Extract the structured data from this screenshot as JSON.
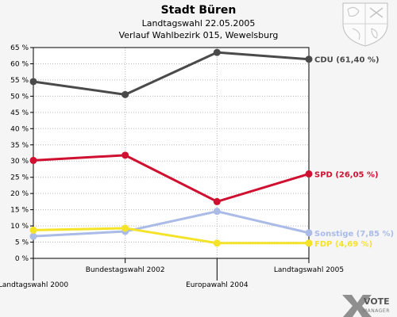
{
  "header": {
    "title": "Stadt Büren",
    "subtitle1": "Landtagswahl 22.05.2005",
    "subtitle2": "Verlauf Wahlbezirk 015, Wewelsburg"
  },
  "logo": {
    "name": "VOTE",
    "tagline": "MANAGER",
    "icon": "x-logo-icon",
    "emblem": "coat-of-arms-icon"
  },
  "chart_data": {
    "type": "line",
    "title": "Stadt Büren",
    "x": [
      "Landtagswahl 2000",
      "Bundestagswahl 2002",
      "Europawahl 2004",
      "Landtagswahl 2005"
    ],
    "ylim": [
      0,
      65
    ],
    "yticks": [
      "0 %",
      "5 %",
      "10 %",
      "15 %",
      "20 %",
      "25 %",
      "30 %",
      "35 %",
      "40 %",
      "45 %",
      "50 %",
      "55 %",
      "60 %",
      "65 %"
    ],
    "grid": true,
    "legend": "end-labels",
    "series": [
      {
        "name": "CDU",
        "label": "CDU (61,40 %)",
        "color": "#4a4a4a",
        "values": [
          54.5,
          50.5,
          63.5,
          61.4
        ]
      },
      {
        "name": "SPD",
        "label": "SPD (26,05 %)",
        "color": "#d01030",
        "values": [
          30.2,
          31.8,
          17.5,
          26.05
        ]
      },
      {
        "name": "Sonstige",
        "label": "Sonstige (7,85 %)",
        "color": "#aabbe8",
        "values": [
          6.8,
          8.3,
          14.5,
          7.85
        ]
      },
      {
        "name": "FDP",
        "label": "FDP (4,69 %)",
        "color": "#f5e32a",
        "values": [
          8.7,
          9.3,
          4.7,
          4.69
        ]
      }
    ]
  }
}
